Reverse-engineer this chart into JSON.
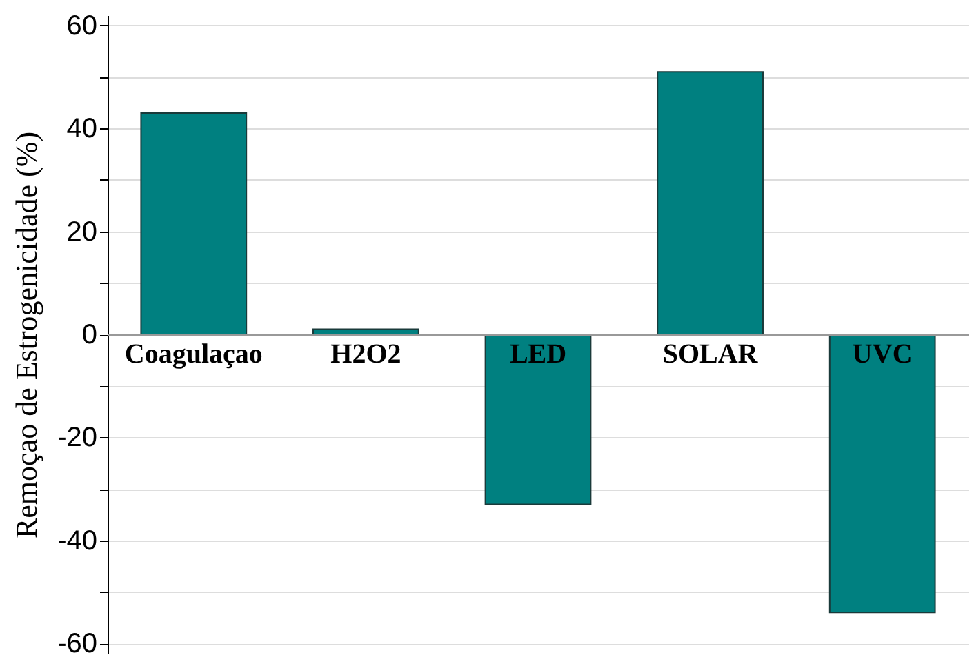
{
  "chart_data": {
    "type": "bar",
    "ylabel": "Remoçao de Estrogenicidade (%)",
    "categories": [
      "Coagulaçao",
      "H2O2",
      "LED",
      "SOLAR",
      "UVC"
    ],
    "values": [
      43,
      1,
      -33,
      51,
      -54
    ],
    "color": "#008080",
    "ylim": [
      -62,
      62
    ],
    "yticks": [
      -60,
      {
        "value": -50,
        "label": null
      },
      -40,
      {
        "value": -30,
        "label": null
      },
      -20,
      {
        "value": -10,
        "label": null
      },
      0,
      {
        "value": 10,
        "label": null
      },
      20,
      {
        "value": 30,
        "label": null
      },
      40,
      {
        "value": 50,
        "label": null
      },
      60
    ],
    "grid": "y"
  }
}
